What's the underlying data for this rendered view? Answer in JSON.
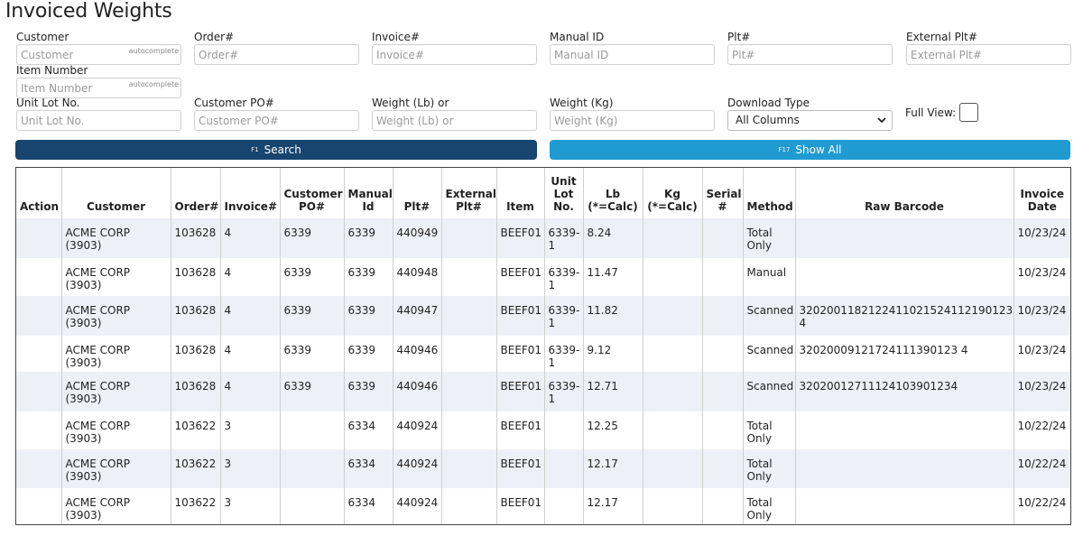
{
  "page": {
    "title": "Invoiced Weights"
  },
  "filters": {
    "customer": {
      "label": "Customer",
      "placeholder": "Customer",
      "tag": "autocomplete"
    },
    "order": {
      "label": "Order#",
      "placeholder": "Order#"
    },
    "invoice": {
      "label": "Invoice#",
      "placeholder": "Invoice#"
    },
    "manual_id": {
      "label": "Manual ID",
      "placeholder": "Manual ID"
    },
    "plt": {
      "label": "Plt#",
      "placeholder": "Plt#"
    },
    "external_plt": {
      "label": "External Plt#",
      "placeholder": "External Plt#"
    },
    "item_number": {
      "label": "Item Number",
      "placeholder": "Item Number",
      "tag": "autocomplete"
    },
    "unit_lot": {
      "label": "Unit Lot No.",
      "placeholder": "Unit Lot No."
    },
    "customer_po": {
      "label": "Customer PO#",
      "placeholder": "Customer PO#"
    },
    "weight_lb": {
      "label": "Weight (Lb) or",
      "placeholder": "Weight (Lb) or"
    },
    "weight_kg": {
      "label": "Weight (Kg)",
      "placeholder": "Weight (Kg)"
    },
    "download_type": {
      "label": "Download Type",
      "selected": "All Columns"
    },
    "full_view": {
      "label": "Full View:",
      "checked": false
    }
  },
  "buttons": {
    "search": {
      "key": "F1",
      "label": "Search",
      "color": "#17456f"
    },
    "show_all": {
      "key": "F17",
      "label": "Show All",
      "color": "#1f9bd1"
    }
  },
  "table": {
    "columns": [
      "Action",
      "Customer",
      "Order#",
      "Invoice#",
      "Customer PO#",
      "Manual Id",
      "Plt#",
      "External Plt#",
      "Item",
      "Unit Lot No.",
      "Lb (*=Calc)",
      "Kg (*=Calc)",
      "Serial #",
      "Method",
      "Raw Barcode",
      "Invoice Date"
    ],
    "rows": [
      [
        "",
        "ACME CORP (3903)",
        "103628",
        "4",
        "6339",
        "6339",
        "440949",
        "",
        "BEEF01",
        "6339-1",
        "8.24",
        "",
        "",
        "Total Only",
        "",
        "10/23/24"
      ],
      [
        "",
        "ACME CORP (3903)",
        "103628",
        "4",
        "6339",
        "6339",
        "440948",
        "",
        "BEEF01",
        "6339-1",
        "11.47",
        "",
        "",
        "Manual",
        "",
        "10/23/24"
      ],
      [
        "",
        "ACME CORP (3903)",
        "103628",
        "4",
        "6339",
        "6339",
        "440947",
        "",
        "BEEF01",
        "6339-1",
        "11.82",
        "",
        "",
        "Scanned",
        "3202001182122411021524112190123 4",
        "10/23/24"
      ],
      [
        "",
        "ACME CORP (3903)",
        "103628",
        "4",
        "6339",
        "6339",
        "440946",
        "",
        "BEEF01",
        "6339-1",
        "9.12",
        "",
        "",
        "Scanned",
        "32020009121724111390123 4",
        "10/23/24"
      ],
      [
        "",
        "ACME CORP (3903)",
        "103628",
        "4",
        "6339",
        "6339",
        "440946",
        "",
        "BEEF01",
        "6339-1",
        "12.71",
        "",
        "",
        "Scanned",
        "32020012711124103901234",
        "10/23/24"
      ],
      [
        "",
        "ACME CORP (3903)",
        "103622",
        "3",
        "",
        "6334",
        "440924",
        "",
        "BEEF01",
        "",
        "12.25",
        "",
        "",
        "Total Only",
        "",
        "10/22/24"
      ],
      [
        "",
        "ACME CORP (3903)",
        "103622",
        "3",
        "",
        "6334",
        "440924",
        "",
        "BEEF01",
        "",
        "12.17",
        "",
        "",
        "Total Only",
        "",
        "10/22/24"
      ],
      [
        "",
        "ACME CORP (3903)",
        "103622",
        "3",
        "",
        "6334",
        "440924",
        "",
        "BEEF01",
        "",
        "12.17",
        "",
        "",
        "Total Only",
        "",
        "10/22/24"
      ]
    ]
  }
}
